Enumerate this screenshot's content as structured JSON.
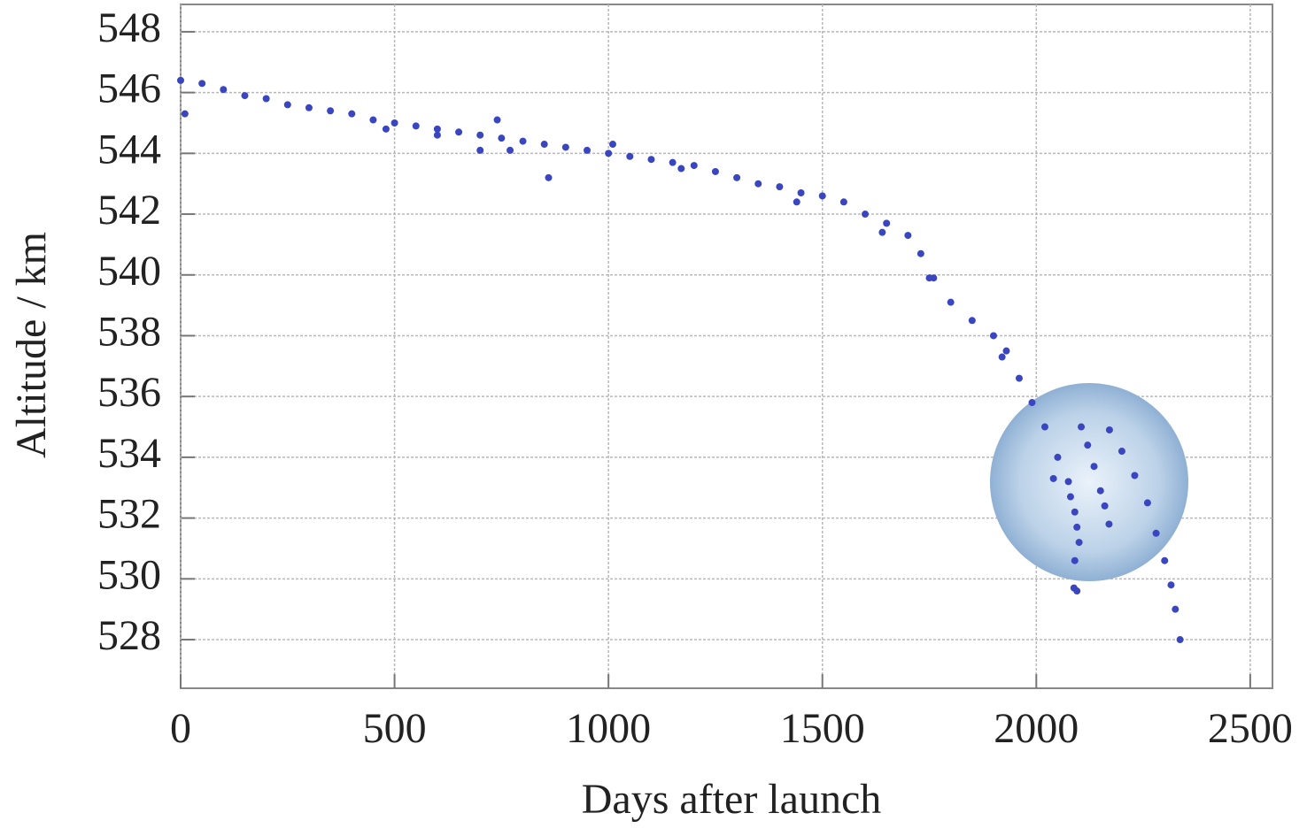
{
  "chart_data": {
    "type": "scatter",
    "x_label": "Days after launch",
    "y_label": "Altitude / km",
    "color": "#3a45c0",
    "grid": true,
    "xlim": [
      0,
      2552
    ],
    "ylim": [
      526.4,
      548.9
    ],
    "xticks": [
      0,
      500,
      1000,
      1500,
      2000,
      2500
    ],
    "yticks": [
      528,
      530,
      532,
      534,
      536,
      538,
      540,
      542,
      544,
      546,
      548
    ],
    "x": [
      0,
      50,
      100,
      150,
      200,
      250,
      300,
      350,
      400,
      450,
      500,
      550,
      600,
      650,
      700,
      750,
      800,
      850,
      900,
      950,
      1000,
      1050,
      1100,
      1150,
      1200,
      1250,
      1300,
      1350,
      1400,
      1450,
      1500,
      1550,
      1600,
      1650,
      1700,
      1730,
      1760,
      1800,
      1850,
      1900,
      1930,
      1960,
      1990,
      2020,
      2050,
      2075,
      2080,
      2090,
      2095,
      2100,
      2090,
      2088,
      2095,
      2105,
      2120,
      2135,
      2150,
      2160,
      2170,
      2171,
      2200,
      2230,
      2260,
      2280,
      2300,
      2315,
      2325,
      2336,
      10,
      480,
      600,
      700,
      740,
      770,
      860,
      1010,
      1170,
      1440,
      1640,
      1750,
      1920,
      2040
    ],
    "y": [
      546.4,
      546.3,
      546.1,
      545.9,
      545.8,
      545.6,
      545.5,
      545.4,
      545.3,
      545.1,
      545.0,
      544.9,
      544.8,
      544.7,
      544.6,
      544.5,
      544.4,
      544.3,
      544.2,
      544.1,
      544.0,
      543.9,
      543.8,
      543.7,
      543.6,
      543.4,
      543.2,
      543.0,
      542.9,
      542.7,
      542.6,
      542.4,
      542.0,
      541.7,
      541.3,
      540.7,
      539.9,
      539.1,
      538.5,
      538.0,
      537.5,
      536.6,
      535.8,
      535.0,
      534.0,
      533.2,
      532.7,
      532.2,
      531.7,
      531.2,
      530.6,
      529.7,
      529.6,
      535.0,
      534.4,
      533.7,
      532.9,
      532.4,
      531.8,
      534.9,
      534.2,
      533.4,
      532.5,
      531.5,
      530.6,
      529.8,
      529.0,
      528.0,
      545.3,
      544.8,
      544.6,
      544.1,
      545.1,
      544.1,
      543.2,
      544.3,
      543.5,
      542.4,
      541.4,
      539.9,
      537.3,
      533.3
    ]
  }
}
